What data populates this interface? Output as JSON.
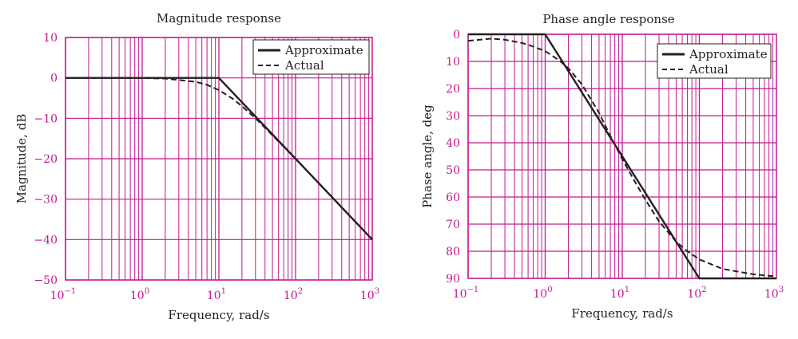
{
  "colors": {
    "grid": "#c2198e",
    "tick_label": "#c2198e",
    "curve": "#231f20",
    "text": "#231f20"
  },
  "chart_data": [
    {
      "type": "line",
      "title": "Magnitude response",
      "xlabel": "Frequency, rad/s",
      "ylabel": "Magnitude, dB",
      "xscale": "log",
      "xlim": [
        0.1,
        1000
      ],
      "ylim": [
        -50,
        10
      ],
      "x_ticks": [
        {
          "value": 0.1,
          "base": "10",
          "exp": "−1"
        },
        {
          "value": 1,
          "base": "10",
          "exp": "0"
        },
        {
          "value": 10,
          "base": "10",
          "exp": "1"
        },
        {
          "value": 100,
          "base": "10",
          "exp": "2"
        },
        {
          "value": 1000,
          "base": "10",
          "exp": "3"
        }
      ],
      "y_ticks": [
        {
          "value": 10,
          "label": "10"
        },
        {
          "value": 0,
          "label": "0"
        },
        {
          "value": -10,
          "label": "−10"
        },
        {
          "value": -20,
          "label": "−20"
        },
        {
          "value": -30,
          "label": "−30"
        },
        {
          "value": -40,
          "label": "−40"
        },
        {
          "value": -50,
          "label": "−50"
        }
      ],
      "y_inverted": false,
      "grid": true,
      "legend_position": "top-right",
      "series": [
        {
          "name": "Approximate",
          "style": "solid",
          "x": [
            0.1,
            10,
            1000
          ],
          "y": [
            0,
            0,
            -40
          ]
        },
        {
          "name": "Actual",
          "style": "dashed",
          "x": [
            0.1,
            0.5,
            1,
            2,
            5,
            7,
            10,
            15,
            20,
            30,
            50,
            100,
            200,
            500,
            1000
          ],
          "y": [
            0,
            -0.01,
            -0.04,
            -0.17,
            -0.97,
            -1.7,
            -3.0,
            -5.1,
            -7.0,
            -10.0,
            -14.2,
            -20.0,
            -26.0,
            -34.0,
            -40.0
          ]
        }
      ]
    },
    {
      "type": "line",
      "title": "Phase angle response",
      "xlabel": "Frequency, rad/s",
      "ylabel": "Phase angle, deg",
      "xscale": "log",
      "xlim": [
        0.1,
        1000
      ],
      "ylim": [
        90,
        0
      ],
      "x_ticks": [
        {
          "value": 0.1,
          "base": "10",
          "exp": "−1"
        },
        {
          "value": 1,
          "base": "10",
          "exp": "0"
        },
        {
          "value": 10,
          "base": "10",
          "exp": "1"
        },
        {
          "value": 100,
          "base": "10",
          "exp": "2"
        },
        {
          "value": 1000,
          "base": "10",
          "exp": "3"
        }
      ],
      "y_ticks": [
        {
          "value": 0,
          "label": "0"
        },
        {
          "value": 10,
          "label": "10"
        },
        {
          "value": 20,
          "label": "20"
        },
        {
          "value": 30,
          "label": "30"
        },
        {
          "value": 40,
          "label": "40"
        },
        {
          "value": 50,
          "label": "50"
        },
        {
          "value": 60,
          "label": "60"
        },
        {
          "value": 70,
          "label": "70"
        },
        {
          "value": 80,
          "label": "80"
        },
        {
          "value": 90,
          "label": "90"
        }
      ],
      "y_inverted": true,
      "grid": true,
      "legend_position": "top-right",
      "series": [
        {
          "name": "Approximate",
          "style": "solid",
          "x": [
            0.1,
            1,
            100,
            1000
          ],
          "y": [
            0,
            0,
            90,
            90
          ]
        },
        {
          "name": "Actual",
          "style": "dashed",
          "x": [
            0.1,
            0.2,
            0.3,
            0.5,
            0.7,
            1,
            1.5,
            2,
            3,
            5,
            7,
            10,
            15,
            20,
            30,
            50,
            70,
            100,
            200,
            500,
            1000
          ],
          "y": [
            2.4,
            1.6,
            2.0,
            3.2,
            4.5,
            6.2,
            9.5,
            12.5,
            18.5,
            29,
            37.5,
            46,
            55,
            61,
            69,
            76.5,
            80,
            83,
            86.5,
            88.5,
            89.3
          ]
        }
      ]
    }
  ]
}
